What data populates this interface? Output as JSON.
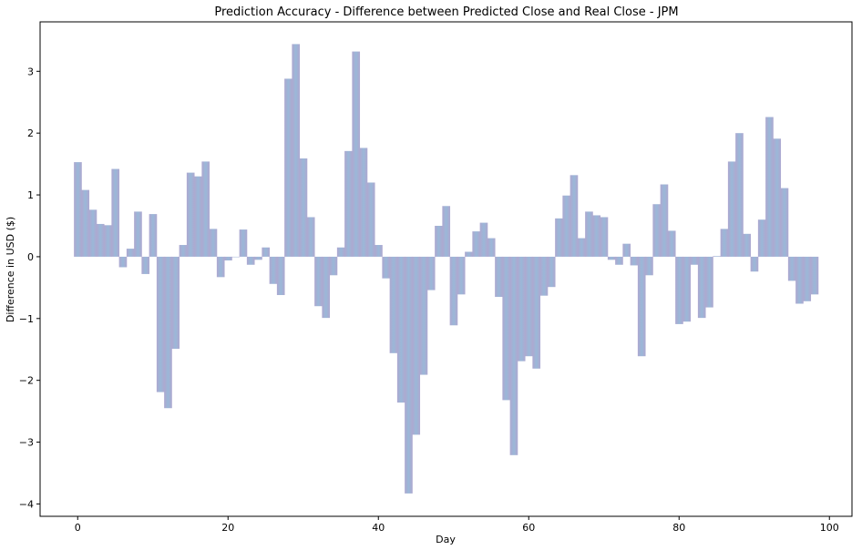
{
  "chart_data": {
    "type": "bar",
    "title": "Prediction Accuracy - Difference between Predicted Close and Real Close - JPM",
    "xlabel": "Day",
    "ylabel": "Difference in USD ($)",
    "xlim": [
      -5,
      103
    ],
    "ylim": [
      -4.2,
      3.8
    ],
    "xticks": [
      0,
      20,
      40,
      60,
      80,
      100
    ],
    "yticks": [
      -4,
      -3,
      -2,
      -1,
      0,
      1,
      2,
      3
    ],
    "grid": false,
    "legend": "none",
    "colors": {
      "bar_mid": "#9ab8d8",
      "bar_edge": "#aea8d0",
      "axis": "#000000"
    },
    "x": [
      0,
      1,
      2,
      3,
      4,
      5,
      6,
      7,
      8,
      9,
      10,
      11,
      12,
      13,
      14,
      15,
      16,
      17,
      18,
      19,
      20,
      21,
      22,
      23,
      24,
      25,
      26,
      27,
      28,
      29,
      30,
      31,
      32,
      33,
      34,
      35,
      36,
      37,
      38,
      39,
      40,
      41,
      42,
      43,
      44,
      45,
      46,
      47,
      48,
      49,
      50,
      51,
      52,
      53,
      54,
      55,
      56,
      57,
      58,
      59,
      60,
      61,
      62,
      63,
      64,
      65,
      66,
      67,
      68,
      69,
      70,
      71,
      72,
      73,
      74,
      75,
      76,
      77,
      78,
      79,
      80,
      81,
      82,
      83,
      84,
      85,
      86,
      87,
      88,
      89,
      90,
      91,
      92,
      93,
      94,
      95,
      96,
      97,
      98
    ],
    "values": [
      1.53,
      1.08,
      0.76,
      0.53,
      0.51,
      1.42,
      -0.17,
      0.13,
      0.73,
      -0.28,
      0.69,
      -2.19,
      -2.45,
      -1.49,
      0.19,
      1.36,
      1.3,
      1.54,
      0.45,
      -0.33,
      -0.06,
      0.0,
      0.44,
      -0.13,
      -0.05,
      0.15,
      -0.44,
      -0.62,
      2.88,
      3.44,
      1.59,
      0.64,
      -0.8,
      -0.99,
      -0.3,
      0.15,
      1.71,
      3.32,
      1.76,
      1.2,
      0.19,
      -0.35,
      -1.56,
      -2.36,
      -3.83,
      -2.88,
      -1.91,
      -0.54,
      0.5,
      0.82,
      -1.11,
      -0.61,
      0.08,
      0.41,
      0.55,
      0.3,
      -0.65,
      -2.32,
      -3.21,
      -1.69,
      -1.61,
      -1.81,
      -0.63,
      -0.49,
      0.62,
      0.99,
      1.32,
      0.3,
      0.73,
      0.67,
      0.64,
      -0.05,
      -0.13,
      0.21,
      -0.14,
      -1.61,
      -0.3,
      0.85,
      1.17,
      0.42,
      -1.09,
      -1.05,
      -0.13,
      -0.99,
      -0.82,
      0.01,
      0.45,
      1.54,
      2.0,
      0.37,
      -0.24,
      0.6,
      2.26,
      1.91,
      1.11,
      -0.39,
      -0.76,
      -0.72,
      -0.61
    ]
  }
}
